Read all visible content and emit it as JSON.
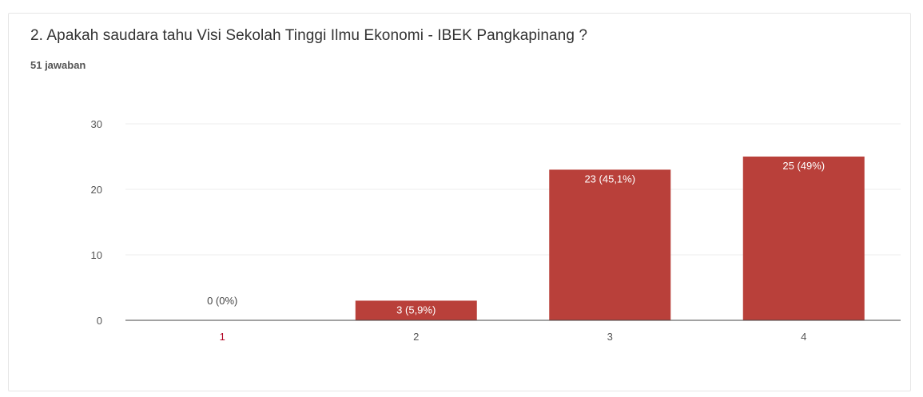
{
  "question": {
    "title": "2. Apakah saudara tahu Visi Sekolah Tinggi Ilmu Ekonomi - IBEK Pangkapinang ?",
    "response_count": "51 jawaban"
  },
  "colors": {
    "bar": "#b9403a",
    "grid": "#eeeeee",
    "axis": "#444444",
    "label_inside": "#ffffff",
    "label_outside": "#444444"
  },
  "chart_data": {
    "type": "bar",
    "categories": [
      "1",
      "2",
      "3",
      "4"
    ],
    "values": [
      0,
      3,
      23,
      25
    ],
    "data_labels": [
      "0 (0%)",
      "3 (5,9%)",
      "23 (45,1%)",
      "25 (49%)"
    ],
    "yticks": [
      "0",
      "10",
      "20",
      "30"
    ],
    "ylim": [
      0,
      30
    ],
    "grid": true,
    "legend": "none"
  }
}
